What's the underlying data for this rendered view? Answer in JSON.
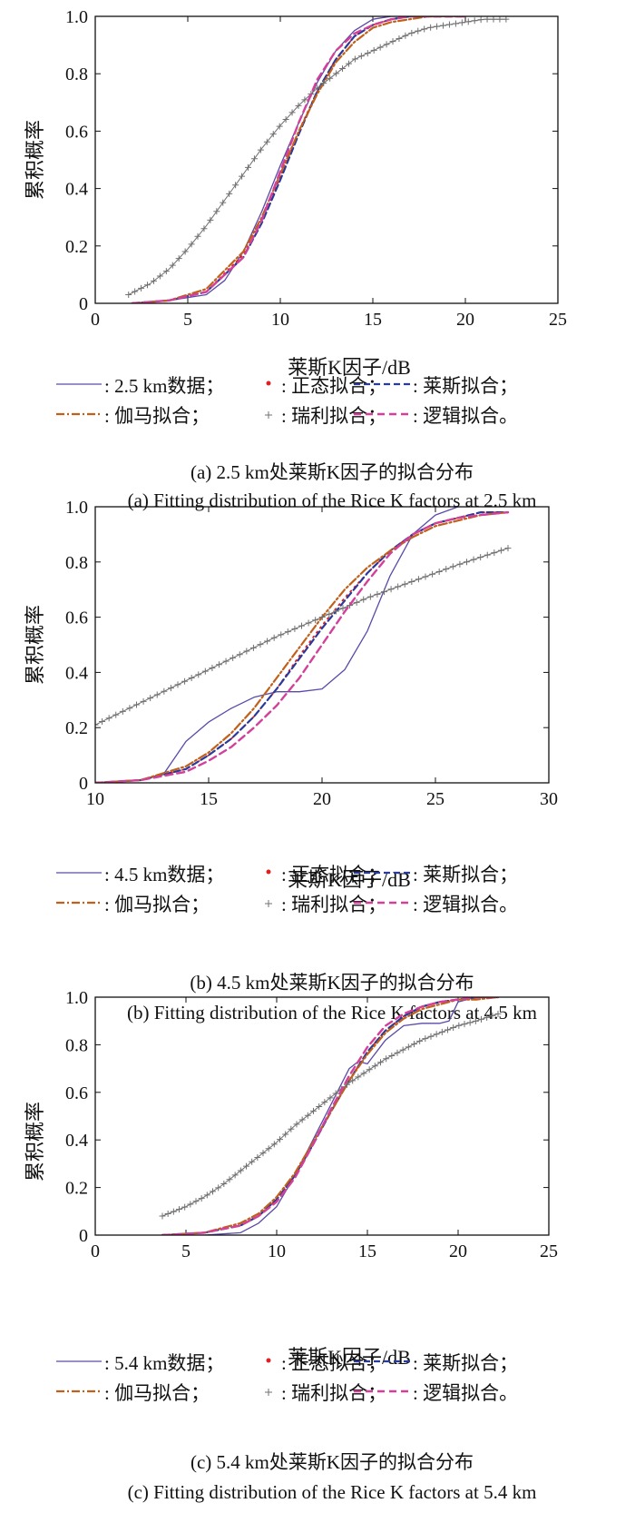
{
  "colors": {
    "data": "#5a4aa8",
    "normal": "#e02020",
    "rice": "#2a3a9a",
    "gamma": "#c0601a",
    "rayleigh": "#707070",
    "logistic": "#d2409a"
  },
  "chart_data": [
    {
      "type": "line",
      "ylabel": "累积概率",
      "xlabel": "莱斯K因子/dB",
      "xlim": [
        0,
        25
      ],
      "ylim": [
        0,
        1.0
      ],
      "xticks": [
        "0",
        "5",
        "10",
        "15",
        "20",
        "25"
      ],
      "yticks": [
        "0",
        "0.2",
        "0.4",
        "0.6",
        "0.8",
        "1.0"
      ],
      "legend": [
        {
          "marker": "—",
          "label": "2.5 km数据；"
        },
        {
          "marker": "•",
          "label": "正态拟合；"
        },
        {
          "marker": "······",
          "label": "莱斯拟合；"
        },
        {
          "marker": "-·-·-",
          "label": "伽马拟合；"
        },
        {
          "marker": "+",
          "label": "瑞利拟合；"
        },
        {
          "marker": "– – –",
          "label": "逻辑拟合。"
        }
      ],
      "caption_cn": "(a) 2.5 km处莱斯K因子的拟合分布",
      "caption_en": "(a) Fitting distribution of the Rice K factors at 2.5 km",
      "series": [
        {
          "key": "data",
          "x": [
            2,
            4,
            6,
            7,
            8,
            9,
            10,
            11,
            12,
            13,
            14,
            15,
            16,
            17,
            18
          ],
          "y": [
            0.0,
            0.01,
            0.03,
            0.08,
            0.18,
            0.32,
            0.48,
            0.63,
            0.77,
            0.88,
            0.95,
            0.99,
            1.0,
            1.0,
            1.0
          ]
        },
        {
          "key": "normal",
          "x": [
            2,
            4,
            6,
            8,
            9,
            10,
            11,
            12,
            13,
            14,
            15,
            16,
            17,
            18,
            19,
            20
          ],
          "y": [
            0.0,
            0.01,
            0.04,
            0.17,
            0.29,
            0.44,
            0.6,
            0.74,
            0.85,
            0.93,
            0.97,
            0.99,
            1.0,
            1.0,
            1.0,
            1.0
          ]
        },
        {
          "key": "rice",
          "x": [
            2,
            4,
            6,
            8,
            9,
            10,
            11,
            12,
            13,
            14,
            15,
            16,
            17,
            18,
            19,
            20
          ],
          "y": [
            0.0,
            0.01,
            0.04,
            0.16,
            0.28,
            0.43,
            0.59,
            0.74,
            0.85,
            0.93,
            0.97,
            0.99,
            1.0,
            1.0,
            1.0,
            1.0
          ]
        },
        {
          "key": "gamma",
          "x": [
            2,
            4,
            6,
            8,
            9,
            10,
            11,
            12,
            13,
            14,
            15,
            16,
            17,
            18,
            19,
            20
          ],
          "y": [
            0.0,
            0.01,
            0.05,
            0.18,
            0.3,
            0.45,
            0.6,
            0.73,
            0.84,
            0.91,
            0.96,
            0.98,
            0.99,
            1.0,
            1.0,
            1.0
          ]
        },
        {
          "key": "rayleigh",
          "x": [
            1.8,
            3,
            4,
            5,
            6,
            7,
            8,
            9,
            10,
            11,
            12,
            13,
            14,
            15,
            16,
            17,
            18,
            19,
            20,
            21,
            22.2
          ],
          "y": [
            0.03,
            0.07,
            0.12,
            0.19,
            0.27,
            0.36,
            0.45,
            0.54,
            0.62,
            0.69,
            0.75,
            0.8,
            0.85,
            0.88,
            0.91,
            0.94,
            0.96,
            0.97,
            0.98,
            0.99,
            0.99
          ]
        },
        {
          "key": "logistic",
          "x": [
            2,
            4,
            6,
            8,
            9,
            10,
            11,
            12,
            13,
            14,
            15,
            16,
            17,
            18,
            19,
            20
          ],
          "y": [
            0.0,
            0.01,
            0.04,
            0.16,
            0.29,
            0.46,
            0.63,
            0.78,
            0.88,
            0.94,
            0.97,
            0.99,
            1.0,
            1.0,
            1.0,
            1.0
          ]
        }
      ]
    },
    {
      "type": "line",
      "ylabel": "累积概率",
      "xlabel": "莱斯K因子/dB",
      "xlim": [
        10,
        30
      ],
      "ylim": [
        0,
        1.0
      ],
      "xticks": [
        "10",
        "15",
        "20",
        "25",
        "30"
      ],
      "yticks": [
        "0",
        "0.2",
        "0.4",
        "0.6",
        "0.8",
        "1.0"
      ],
      "legend": [
        {
          "marker": "—",
          "label": "4.5 km数据；"
        },
        {
          "marker": "•",
          "label": "正态拟合；"
        },
        {
          "marker": "– – –",
          "label": "莱斯拟合；"
        },
        {
          "marker": "-·-·-",
          "label": "伽马拟合；"
        },
        {
          "marker": "+",
          "label": "瑞利拟合；"
        },
        {
          "marker": "-·-·-",
          "label": "逻辑拟合。"
        }
      ],
      "caption_cn": "(b) 4.5 km处莱斯K因子的拟合分布",
      "caption_en": "(b) Fitting distribution of the Rice K factors at 4.5 km",
      "series": [
        {
          "key": "data",
          "x": [
            10,
            12,
            13,
            14,
            15,
            16,
            17,
            18,
            19,
            20,
            21,
            22,
            23,
            24,
            25,
            26,
            26.5
          ],
          "y": [
            0.0,
            0.01,
            0.03,
            0.15,
            0.22,
            0.27,
            0.31,
            0.33,
            0.33,
            0.34,
            0.41,
            0.55,
            0.75,
            0.9,
            0.97,
            1.0,
            1.0
          ]
        },
        {
          "key": "normal",
          "x": [
            10,
            12,
            14,
            15,
            16,
            17,
            18,
            19,
            20,
            21,
            22,
            23,
            24,
            25,
            26,
            27,
            28.2
          ],
          "y": [
            0.0,
            0.01,
            0.05,
            0.1,
            0.16,
            0.24,
            0.34,
            0.46,
            0.57,
            0.67,
            0.76,
            0.84,
            0.9,
            0.94,
            0.96,
            0.98,
            0.98
          ]
        },
        {
          "key": "rice",
          "x": [
            10,
            12,
            14,
            15,
            16,
            17,
            18,
            19,
            20,
            21,
            22,
            23,
            24,
            25,
            26,
            27,
            28.2
          ],
          "y": [
            0.0,
            0.01,
            0.05,
            0.1,
            0.16,
            0.24,
            0.34,
            0.45,
            0.56,
            0.66,
            0.76,
            0.84,
            0.9,
            0.94,
            0.96,
            0.98,
            0.98
          ]
        },
        {
          "key": "gamma",
          "x": [
            10,
            12,
            14,
            15,
            16,
            17,
            18,
            19,
            20,
            21,
            22,
            23,
            24,
            25,
            26,
            27,
            28.2
          ],
          "y": [
            0.0,
            0.01,
            0.06,
            0.11,
            0.18,
            0.27,
            0.38,
            0.49,
            0.6,
            0.7,
            0.78,
            0.84,
            0.89,
            0.93,
            0.95,
            0.97,
            0.98
          ]
        },
        {
          "key": "rayleigh",
          "x": [
            10,
            12,
            14,
            16,
            18,
            20,
            22,
            24,
            26,
            28.2
          ],
          "y": [
            0.21,
            0.29,
            0.37,
            0.45,
            0.53,
            0.6,
            0.67,
            0.73,
            0.79,
            0.85
          ]
        },
        {
          "key": "logistic",
          "x": [
            10,
            12,
            14,
            15,
            16,
            17,
            18,
            19,
            20,
            21,
            22,
            23,
            24,
            25,
            26,
            27,
            28.2
          ],
          "y": [
            0.0,
            0.01,
            0.04,
            0.08,
            0.13,
            0.2,
            0.28,
            0.38,
            0.5,
            0.62,
            0.73,
            0.83,
            0.9,
            0.94,
            0.96,
            0.97,
            0.98
          ]
        }
      ]
    },
    {
      "type": "line",
      "ylabel": "累积概率",
      "xlabel": "莱斯K因子/dB",
      "xlim": [
        0,
        25
      ],
      "ylim": [
        0,
        1.0
      ],
      "xticks": [
        "0",
        "5",
        "10",
        "15",
        "20",
        "25"
      ],
      "yticks": [
        "0",
        "0.2",
        "0.4",
        "0.6",
        "0.8",
        "1.0"
      ],
      "legend": [
        {
          "marker": "—",
          "label": "5.4 km数据；"
        },
        {
          "marker": "•",
          "label": "正态拟合；"
        },
        {
          "marker": "– – –",
          "label": "莱斯拟合；"
        },
        {
          "marker": "-·-·-",
          "label": "伽马拟合；"
        },
        {
          "marker": "+",
          "label": "瑞利拟合；"
        },
        {
          "marker": "······",
          "label": "逻辑拟合。"
        }
      ],
      "caption_cn": "(c) 5.4 km处莱斯K因子的拟合分布",
      "caption_en": "(c) Fitting distribution of the Rice K factors at 5.4 km",
      "series": [
        {
          "key": "data",
          "x": [
            3.7,
            6,
            8,
            9,
            10,
            11,
            12,
            13,
            14,
            14.5,
            15,
            16,
            17,
            18,
            19,
            19.5,
            20,
            21,
            22.2
          ],
          "y": [
            0.0,
            0.0,
            0.01,
            0.05,
            0.12,
            0.25,
            0.4,
            0.55,
            0.7,
            0.73,
            0.72,
            0.82,
            0.88,
            0.89,
            0.89,
            0.9,
            0.98,
            1.0,
            1.0
          ]
        },
        {
          "key": "normal",
          "x": [
            3.7,
            6,
            8,
            9,
            10,
            11,
            12,
            13,
            14,
            15,
            16,
            17,
            18,
            19,
            20,
            21,
            22.2
          ],
          "y": [
            0.0,
            0.01,
            0.04,
            0.08,
            0.15,
            0.25,
            0.38,
            0.52,
            0.65,
            0.77,
            0.86,
            0.92,
            0.96,
            0.98,
            0.99,
            1.0,
            1.0
          ]
        },
        {
          "key": "rice",
          "x": [
            3.7,
            6,
            8,
            9,
            10,
            11,
            12,
            13,
            14,
            15,
            16,
            17,
            18,
            19,
            20,
            21,
            22.2
          ],
          "y": [
            0.0,
            0.01,
            0.04,
            0.08,
            0.15,
            0.25,
            0.38,
            0.52,
            0.65,
            0.77,
            0.86,
            0.92,
            0.96,
            0.98,
            0.99,
            1.0,
            1.0
          ]
        },
        {
          "key": "gamma",
          "x": [
            3.7,
            6,
            8,
            9,
            10,
            11,
            12,
            13,
            14,
            15,
            16,
            17,
            18,
            19,
            20,
            21,
            22.2
          ],
          "y": [
            0.0,
            0.01,
            0.05,
            0.09,
            0.16,
            0.26,
            0.39,
            0.52,
            0.65,
            0.76,
            0.85,
            0.91,
            0.95,
            0.97,
            0.99,
            0.99,
            1.0
          ]
        },
        {
          "key": "rayleigh",
          "x": [
            3.7,
            5,
            6,
            7,
            8,
            9,
            10,
            11,
            12,
            13,
            14,
            15,
            16,
            17,
            18,
            19,
            20,
            21,
            22.2
          ],
          "y": [
            0.08,
            0.12,
            0.16,
            0.21,
            0.27,
            0.33,
            0.39,
            0.46,
            0.52,
            0.58,
            0.64,
            0.69,
            0.74,
            0.78,
            0.82,
            0.85,
            0.88,
            0.9,
            0.93
          ]
        },
        {
          "key": "logistic",
          "x": [
            3.7,
            6,
            8,
            9,
            10,
            11,
            12,
            13,
            14,
            15,
            16,
            17,
            18,
            19,
            20,
            21,
            22.2
          ],
          "y": [
            0.0,
            0.01,
            0.04,
            0.08,
            0.14,
            0.24,
            0.38,
            0.53,
            0.67,
            0.79,
            0.88,
            0.93,
            0.96,
            0.98,
            0.99,
            1.0,
            1.0
          ]
        }
      ]
    }
  ]
}
